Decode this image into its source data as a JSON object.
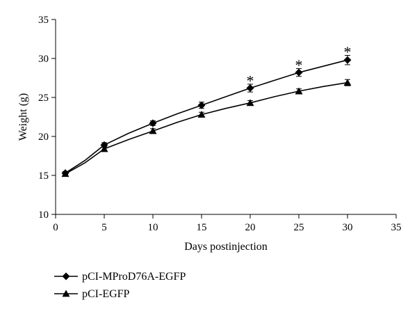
{
  "chart_data": {
    "type": "line",
    "title": "",
    "xlabel": "Days postinjection",
    "ylabel": "Weight (g)",
    "xlim": [
      0,
      35
    ],
    "ylim": [
      10,
      35
    ],
    "xticks": [
      0,
      5,
      10,
      15,
      20,
      25,
      30,
      35
    ],
    "yticks": [
      10,
      15,
      20,
      25,
      30,
      35
    ],
    "grid": false,
    "legend_position": "bottom-left",
    "series": [
      {
        "name": "pCI-MProD76A-EGFP",
        "marker": "diamond",
        "color": "#000000",
        "x": [
          1,
          5,
          10,
          15,
          20,
          25,
          30
        ],
        "y": [
          15.3,
          18.9,
          21.7,
          24.0,
          26.2,
          28.2,
          29.8
        ],
        "error": [
          0.2,
          0.3,
          0.3,
          0.4,
          0.5,
          0.5,
          0.6
        ],
        "curve": [
          [
            1,
            15.3
          ],
          [
            3,
            16.9
          ],
          [
            5,
            18.9
          ],
          [
            7.5,
            20.4
          ],
          [
            10,
            21.7
          ],
          [
            12.5,
            22.9
          ],
          [
            15,
            24.0
          ],
          [
            17.5,
            25.1
          ],
          [
            20,
            26.2
          ],
          [
            22.5,
            27.2
          ],
          [
            25,
            28.2
          ],
          [
            27.5,
            29.0
          ],
          [
            30,
            29.8
          ]
        ]
      },
      {
        "name": "pCI-EGFP",
        "marker": "triangle",
        "color": "#000000",
        "x": [
          1,
          5,
          10,
          15,
          20,
          25,
          30
        ],
        "y": [
          15.2,
          18.4,
          20.7,
          22.8,
          24.3,
          25.8,
          26.9
        ],
        "error": [
          0.2,
          0.3,
          0.3,
          0.3,
          0.3,
          0.3,
          0.4
        ],
        "curve": [
          [
            1,
            15.2
          ],
          [
            3,
            16.6
          ],
          [
            5,
            18.4
          ],
          [
            7.5,
            19.6
          ],
          [
            10,
            20.7
          ],
          [
            12.5,
            21.8
          ],
          [
            15,
            22.8
          ],
          [
            17.5,
            23.6
          ],
          [
            20,
            24.3
          ],
          [
            22.5,
            25.1
          ],
          [
            25,
            25.8
          ],
          [
            27.5,
            26.4
          ],
          [
            30,
            26.9
          ]
        ]
      }
    ],
    "annotations": [
      {
        "text": "*",
        "x": 20,
        "y": 27.2
      },
      {
        "text": "*",
        "x": 25,
        "y": 29.2
      },
      {
        "text": "*",
        "x": 30,
        "y": 30.9
      }
    ]
  }
}
